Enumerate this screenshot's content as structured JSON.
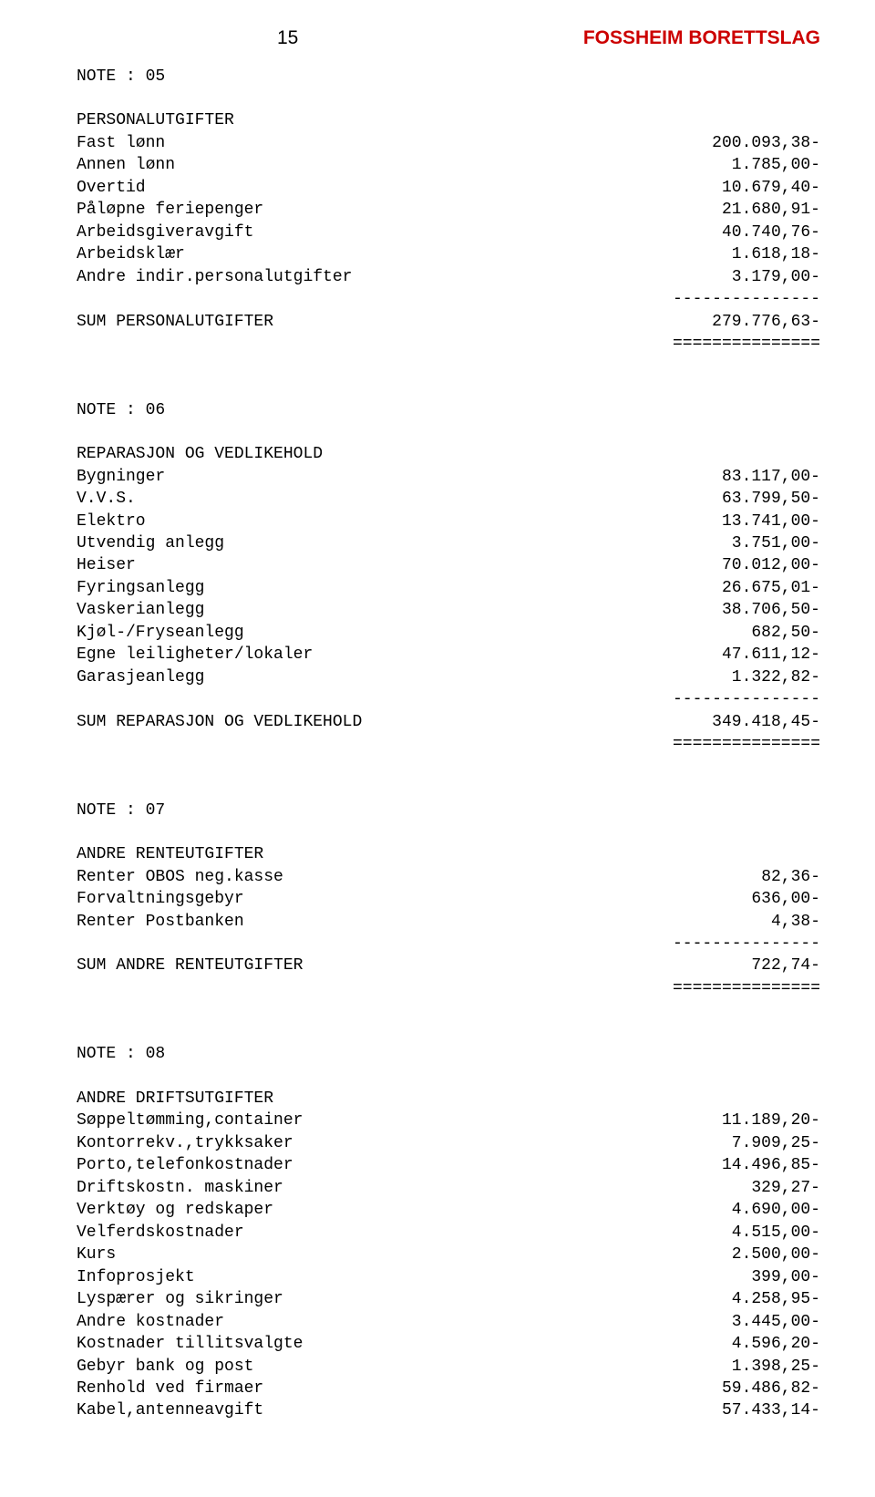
{
  "meta": {
    "page_number": "15",
    "header_title": "FOSSHEIM BORETTSLAG",
    "header_color": "#cc0000",
    "font_family_mono": "Courier New",
    "font_family_sans": "Arial",
    "font_size_body": 18,
    "font_size_header": 21,
    "background_color": "#ffffff",
    "text_color": "#000000",
    "dash_rule": "---------------",
    "eq_rule": "==============="
  },
  "note05": {
    "title": "NOTE : 05",
    "section": "PERSONALUTGIFTER",
    "rows": [
      {
        "label": "Fast lønn",
        "amount": "200.093,38-"
      },
      {
        "label": "Annen lønn",
        "amount": "1.785,00-"
      },
      {
        "label": "Overtid",
        "amount": "10.679,40-"
      },
      {
        "label": "Påløpne feriepenger",
        "amount": "21.680,91-"
      },
      {
        "label": "Arbeidsgiveravgift",
        "amount": "40.740,76-"
      },
      {
        "label": "Arbeidsklær",
        "amount": "1.618,18-"
      },
      {
        "label": "Andre indir.personalutgifter",
        "amount": "3.179,00-"
      }
    ],
    "sum": {
      "label": "SUM PERSONALUTGIFTER",
      "amount": "279.776,63-"
    }
  },
  "note06": {
    "title": "NOTE : 06",
    "section": "REPARASJON OG VEDLIKEHOLD",
    "rows": [
      {
        "label": "Bygninger",
        "amount": "83.117,00-"
      },
      {
        "label": "V.V.S.",
        "amount": "63.799,50-"
      },
      {
        "label": "Elektro",
        "amount": "13.741,00-"
      },
      {
        "label": "Utvendig anlegg",
        "amount": "3.751,00-"
      },
      {
        "label": "Heiser",
        "amount": "70.012,00-"
      },
      {
        "label": "Fyringsanlegg",
        "amount": "26.675,01-"
      },
      {
        "label": "Vaskerianlegg",
        "amount": "38.706,50-"
      },
      {
        "label": "Kjøl-/Fryseanlegg",
        "amount": "682,50-"
      },
      {
        "label": "Egne leiligheter/lokaler",
        "amount": "47.611,12-"
      },
      {
        "label": "Garasjeanlegg",
        "amount": "1.322,82-"
      }
    ],
    "sum": {
      "label": "SUM REPARASJON OG VEDLIKEHOLD",
      "amount": "349.418,45-"
    }
  },
  "note07": {
    "title": "NOTE : 07",
    "section": "ANDRE RENTEUTGIFTER",
    "rows": [
      {
        "label": "Renter OBOS neg.kasse",
        "amount": "82,36-"
      },
      {
        "label": "Forvaltningsgebyr",
        "amount": "636,00-"
      },
      {
        "label": "Renter Postbanken",
        "amount": "4,38-"
      }
    ],
    "sum": {
      "label": "SUM ANDRE RENTEUTGIFTER",
      "amount": "722,74-"
    }
  },
  "note08": {
    "title": "NOTE : 08",
    "section": "ANDRE DRIFTSUTGIFTER",
    "rows": [
      {
        "label": "Søppeltømming,container",
        "amount": "11.189,20-"
      },
      {
        "label": "Kontorrekv.,trykksaker",
        "amount": "7.909,25-"
      },
      {
        "label": "Porto,telefonkostnader",
        "amount": "14.496,85-"
      },
      {
        "label": "Driftskostn. maskiner",
        "amount": "329,27-"
      },
      {
        "label": "Verktøy og redskaper",
        "amount": "4.690,00-"
      },
      {
        "label": "Velferdskostnader",
        "amount": "4.515,00-"
      },
      {
        "label": "Kurs",
        "amount": "2.500,00-"
      },
      {
        "label": "Infoprosjekt",
        "amount": "399,00-"
      },
      {
        "label": "Lyspærer og sikringer",
        "amount": "4.258,95-"
      },
      {
        "label": "Andre kostnader",
        "amount": "3.445,00-"
      },
      {
        "label": "Kostnader tillitsvalgte",
        "amount": "4.596,20-"
      },
      {
        "label": "Gebyr bank og post",
        "amount": "1.398,25-"
      },
      {
        "label": "Renhold ved firmaer",
        "amount": "59.486,82-"
      },
      {
        "label": "Kabel,antenneavgift",
        "amount": "57.433,14-"
      }
    ]
  }
}
